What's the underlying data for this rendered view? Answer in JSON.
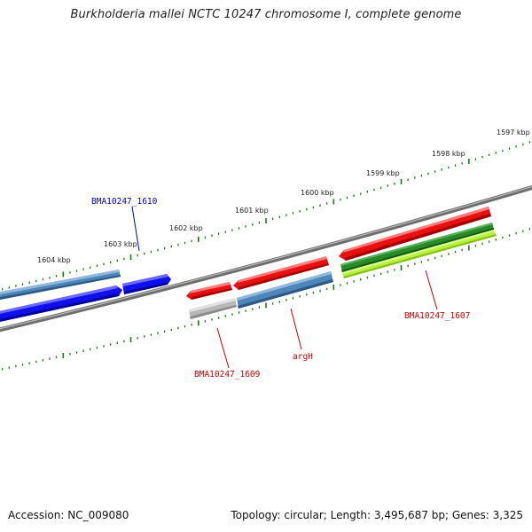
{
  "title": "Burkholderia mallei NCTC 10247 chromosome I, complete genome",
  "footer": {
    "accession": "Accession: NC_009080",
    "info": "Topology: circular; Length: 3,495,687 bp; Genes: 3,325"
  },
  "scale_labels": [
    "1597 kbp",
    "1598 kbp",
    "1599 kbp",
    "1600 kbp",
    "1601 kbp",
    "1602 kbp",
    "1603 kbp",
    "1604 kbp"
  ],
  "gene_labels": [
    {
      "text": "BMA10247_1610",
      "color": "#0000cc"
    },
    {
      "text": "BMA10247_1609",
      "color": "#cc0000"
    },
    {
      "text": "argH",
      "color": "#cc0000"
    },
    {
      "text": "BMA10247_1607",
      "color": "#cc0000"
    }
  ],
  "colors": {
    "backbone": "#777777",
    "tick": "#1a7a1a",
    "forward_gene": "#e81010",
    "reverse_gene": "#1010ee",
    "steel_feature": "#4f86b8",
    "pseudo_gene": "#b8b8b8",
    "dark_green": "#2a8a2a",
    "light_green": "#b6f23c"
  }
}
